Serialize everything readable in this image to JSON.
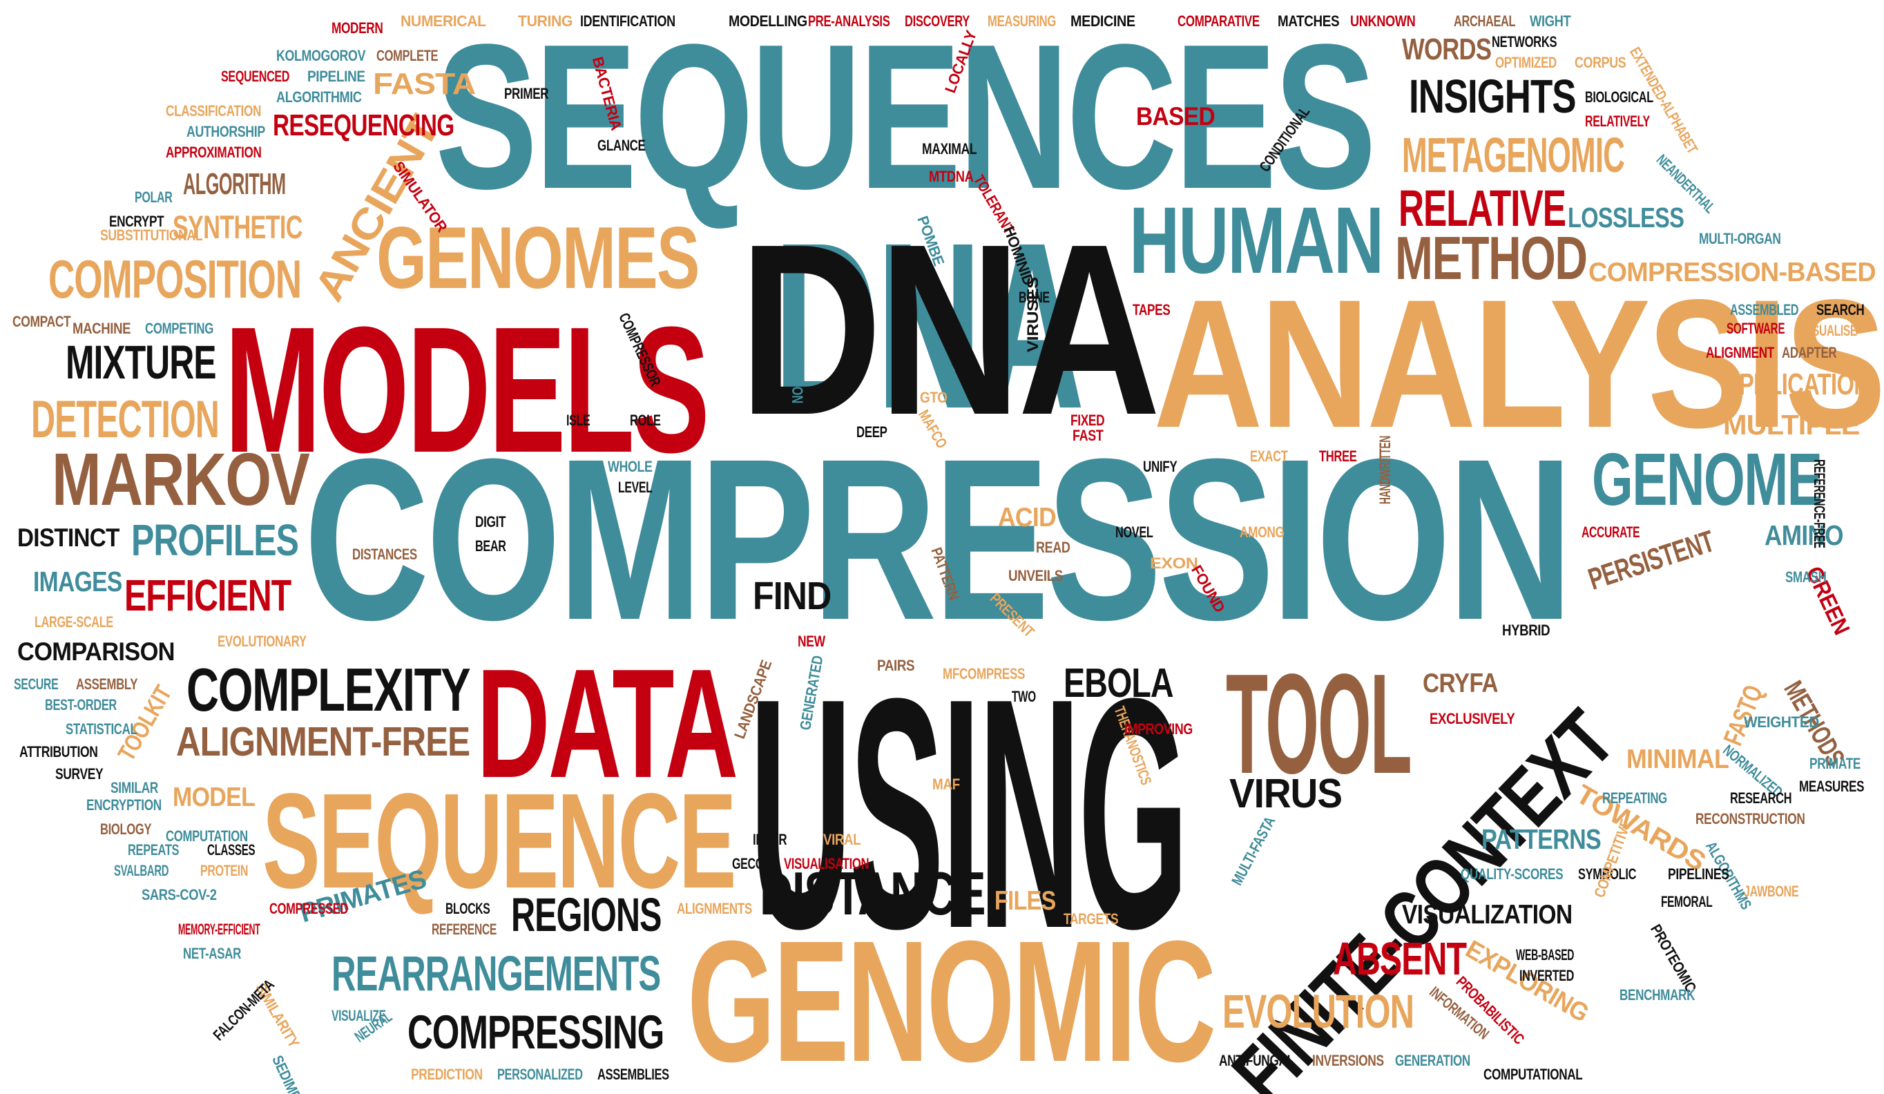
{
  "palette": {
    "teal": "#3f8c9b",
    "red": "#c40010",
    "black": "#111111",
    "orange": "#e8a55c",
    "brown": "#94603f"
  },
  "words": [
    {
      "text": "DNA",
      "color": "teal"
    },
    {
      "text": "DNA",
      "color": "black"
    },
    {
      "text": "COMPRESSION",
      "color": "teal"
    },
    {
      "text": "SEQUENCES",
      "color": "teal"
    },
    {
      "text": "USING",
      "color": "black"
    },
    {
      "text": "MODELS",
      "color": "red"
    },
    {
      "text": "ANALYSIS",
      "color": "orange"
    },
    {
      "text": "GENOMIC",
      "color": "orange"
    },
    {
      "text": "DATA",
      "color": "red"
    },
    {
      "text": "SEQUENCE",
      "color": "orange"
    },
    {
      "text": "FINITE-CONTEXT",
      "color": "black"
    },
    {
      "text": "TOOL",
      "color": "brown"
    },
    {
      "text": "GENOMES",
      "color": "orange"
    },
    {
      "text": "HUMAN",
      "color": "teal"
    },
    {
      "text": "GENOME",
      "color": "teal"
    },
    {
      "text": "MARKOV",
      "color": "brown"
    },
    {
      "text": "DISTANCE",
      "color": "black"
    },
    {
      "text": "COMPLEXITY",
      "color": "black"
    },
    {
      "text": "METHOD",
      "color": "brown"
    },
    {
      "text": "REARRANGEMENTS",
      "color": "teal"
    },
    {
      "text": "COMPRESSING",
      "color": "black"
    },
    {
      "text": "COMPOSITION",
      "color": "orange"
    },
    {
      "text": "DETECTION",
      "color": "orange"
    },
    {
      "text": "MIXTURE",
      "color": "black"
    },
    {
      "text": "RELATIVE",
      "color": "red"
    },
    {
      "text": "INSIGHTS",
      "color": "black"
    },
    {
      "text": "METAGENOMIC",
      "color": "orange"
    },
    {
      "text": "REGIONS",
      "color": "black"
    },
    {
      "text": "EVOLUTION",
      "color": "orange"
    },
    {
      "text": "ALIGNMENT-FREE",
      "color": "brown"
    },
    {
      "text": "PROFILES",
      "color": "teal"
    },
    {
      "text": "EFFICIENT",
      "color": "red"
    },
    {
      "text": "ABSENT",
      "color": "red"
    },
    {
      "text": "EBOLA",
      "color": "black"
    },
    {
      "text": "VIRUS",
      "color": "black"
    },
    {
      "text": "ANCIENT",
      "color": "orange"
    },
    {
      "text": "SYNTHETIC",
      "color": "orange"
    },
    {
      "text": "ALGORITHM",
      "color": "brown"
    },
    {
      "text": "RESEQUENCING",
      "color": "red"
    },
    {
      "text": "FASTA",
      "color": "orange"
    },
    {
      "text": "WORDS",
      "color": "brown"
    },
    {
      "text": "LOSSLESS",
      "color": "teal"
    },
    {
      "text": "COMPRESSION-BASED",
      "color": "orange"
    },
    {
      "text": "APPLICATION",
      "color": "orange"
    },
    {
      "text": "MULTIPLE",
      "color": "orange"
    },
    {
      "text": "PERSISTENT",
      "color": "brown"
    },
    {
      "text": "AMINO",
      "color": "teal"
    },
    {
      "text": "FIND",
      "color": "black"
    },
    {
      "text": "ACID",
      "color": "orange"
    },
    {
      "text": "CRYFA",
      "color": "brown"
    },
    {
      "text": "FASTQ",
      "color": "orange"
    },
    {
      "text": "METHODS",
      "color": "brown"
    },
    {
      "text": "GREEN",
      "color": "red"
    },
    {
      "text": "MINIMAL",
      "color": "orange"
    },
    {
      "text": "TOWARDS",
      "color": "orange"
    },
    {
      "text": "PATTERNS",
      "color": "teal"
    },
    {
      "text": "VISUALIZATION",
      "color": "black"
    },
    {
      "text": "EXPLORING",
      "color": "orange"
    },
    {
      "text": "FILES",
      "color": "orange"
    },
    {
      "text": "PRIMATES",
      "color": "teal"
    },
    {
      "text": "MODEL",
      "color": "orange"
    },
    {
      "text": "IMAGES",
      "color": "teal"
    },
    {
      "text": "DISTINCT",
      "color": "black"
    },
    {
      "text": "COMPARISON",
      "color": "black"
    },
    {
      "text": "TOOLKIT",
      "color": "orange"
    },
    {
      "text": "BASED",
      "color": "red"
    },
    {
      "text": "MODERN",
      "color": "red"
    },
    {
      "text": "NUMERICAL",
      "color": "orange"
    },
    {
      "text": "TURING",
      "color": "orange"
    },
    {
      "text": "IDENTIFICATION",
      "color": "black"
    },
    {
      "text": "MODELLING",
      "color": "black"
    },
    {
      "text": "PRE-ANALYSIS",
      "color": "red"
    },
    {
      "text": "DISCOVERY",
      "color": "red"
    },
    {
      "text": "MEASURING",
      "color": "orange"
    },
    {
      "text": "MEDICINE",
      "color": "black"
    },
    {
      "text": "COMPARATIVE",
      "color": "red"
    },
    {
      "text": "MATCHES",
      "color": "black"
    },
    {
      "text": "UNKNOWN",
      "color": "red"
    },
    {
      "text": "ARCHAEAL",
      "color": "brown"
    },
    {
      "text": "WIGHT",
      "color": "teal"
    },
    {
      "text": "KOLMOGOROV",
      "color": "teal"
    },
    {
      "text": "COMPLETE",
      "color": "brown"
    },
    {
      "text": "SEQUENCED",
      "color": "red"
    },
    {
      "text": "PIPELINE",
      "color": "teal"
    },
    {
      "text": "CLASSIFICATION",
      "color": "orange"
    },
    {
      "text": "ALGORITHMIC",
      "color": "teal"
    },
    {
      "text": "AUTHORSHIP",
      "color": "teal"
    },
    {
      "text": "APPROXIMATION",
      "color": "red"
    },
    {
      "text": "POLAR",
      "color": "teal"
    },
    {
      "text": "ENCRYPT",
      "color": "black"
    },
    {
      "text": "SUBSTITUTIONAL",
      "color": "orange"
    },
    {
      "text": "COMPACT",
      "color": "brown"
    },
    {
      "text": "MACHINE",
      "color": "brown"
    },
    {
      "text": "COMPETING",
      "color": "teal"
    },
    {
      "text": "PRIMER",
      "color": "black"
    },
    {
      "text": "BACTERIA",
      "color": "red"
    },
    {
      "text": "GLANCE",
      "color": "black"
    },
    {
      "text": "SIMULATOR",
      "color": "red"
    },
    {
      "text": "LOCALLY",
      "color": "red"
    },
    {
      "text": "MAXIMAL",
      "color": "black"
    },
    {
      "text": "MTDNA",
      "color": "red"
    },
    {
      "text": "TOLERANT",
      "color": "red"
    },
    {
      "text": "POMBE",
      "color": "teal"
    },
    {
      "text": "HOMINID",
      "color": "black"
    },
    {
      "text": "BONE",
      "color": "black"
    },
    {
      "text": "COMPRESSOR",
      "color": "black"
    },
    {
      "text": "CONVERSION",
      "color": "teal"
    },
    {
      "text": "VIRUSES",
      "color": "black"
    },
    {
      "text": "TAPES",
      "color": "red"
    },
    {
      "text": "GTO",
      "color": "orange"
    },
    {
      "text": "MAFCO",
      "color": "orange"
    },
    {
      "text": "ISLE",
      "color": "black"
    },
    {
      "text": "ROLE",
      "color": "black"
    },
    {
      "text": "DEEP",
      "color": "black"
    },
    {
      "text": "FIXED",
      "color": "red"
    },
    {
      "text": "FAST",
      "color": "red"
    },
    {
      "text": "UNIFY",
      "color": "black"
    },
    {
      "text": "EXACT",
      "color": "orange"
    },
    {
      "text": "THREE",
      "color": "red"
    },
    {
      "text": "WHOLE",
      "color": "teal"
    },
    {
      "text": "LEVEL",
      "color": "black"
    },
    {
      "text": "DIGIT",
      "color": "black"
    },
    {
      "text": "BEAR",
      "color": "black"
    },
    {
      "text": "DISTANCES",
      "color": "brown"
    },
    {
      "text": "NOVEL",
      "color": "black"
    },
    {
      "text": "AMONG",
      "color": "orange"
    },
    {
      "text": "READ",
      "color": "brown"
    },
    {
      "text": "UNVEILS",
      "color": "brown"
    },
    {
      "text": "PRESENT",
      "color": "orange"
    },
    {
      "text": "PATTERN",
      "color": "brown"
    },
    {
      "text": "EXON",
      "color": "orange"
    },
    {
      "text": "FOUND",
      "color": "red"
    },
    {
      "text": "HANDWRITTEN",
      "color": "brown"
    },
    {
      "text": "ACCURATE",
      "color": "red"
    },
    {
      "text": "REFERENCE-FREE",
      "color": "black"
    },
    {
      "text": "SMASH",
      "color": "teal"
    },
    {
      "text": "LARGE-SCALE",
      "color": "orange"
    },
    {
      "text": "EVOLUTIONARY",
      "color": "orange"
    },
    {
      "text": "NEW",
      "color": "red"
    },
    {
      "text": "GENERATED",
      "color": "teal"
    },
    {
      "text": "PAIRS",
      "color": "brown"
    },
    {
      "text": "MFCOMPRESS",
      "color": "orange"
    },
    {
      "text": "TWO",
      "color": "black"
    },
    {
      "text": "LANDSCAPE",
      "color": "brown"
    },
    {
      "text": "THERANOSTICS",
      "color": "orange"
    },
    {
      "text": "HYBRID",
      "color": "black"
    },
    {
      "text": "EXCLUSIVELY",
      "color": "red"
    },
    {
      "text": "IMPROVING",
      "color": "red"
    },
    {
      "text": "WEIGHTED",
      "color": "teal"
    },
    {
      "text": "NORMALIZED",
      "color": "teal"
    },
    {
      "text": "PRIMATE",
      "color": "teal"
    },
    {
      "text": "MEASURES",
      "color": "black"
    },
    {
      "text": "REPEATING",
      "color": "teal"
    },
    {
      "text": "RESEARCH",
      "color": "black"
    },
    {
      "text": "RECONSTRUCTION",
      "color": "brown"
    },
    {
      "text": "ALGORITHMS",
      "color": "teal"
    },
    {
      "text": "MULTI-FASTA",
      "color": "teal"
    },
    {
      "text": "QUALITY-SCORES",
      "color": "teal"
    },
    {
      "text": "SYMBOLIC",
      "color": "black"
    },
    {
      "text": "PIPELINES",
      "color": "black"
    },
    {
      "text": "COMPETITIVE",
      "color": "orange"
    },
    {
      "text": "FEMORAL",
      "color": "black"
    },
    {
      "text": "JAWBONE",
      "color": "orange"
    },
    {
      "text": "PROTEOMIC",
      "color": "black"
    },
    {
      "text": "WEB-BASED",
      "color": "black"
    },
    {
      "text": "INVERTED",
      "color": "black"
    },
    {
      "text": "BENCHMARK",
      "color": "teal"
    },
    {
      "text": "INFORMATION",
      "color": "brown"
    },
    {
      "text": "PROBABILISTIC",
      "color": "red"
    },
    {
      "text": "ANTIFUNGAL",
      "color": "black"
    },
    {
      "text": "INVERSIONS",
      "color": "brown"
    },
    {
      "text": "GENERATION",
      "color": "teal"
    },
    {
      "text": "COMPUTATIONAL",
      "color": "black"
    },
    {
      "text": "TARGETS",
      "color": "orange"
    },
    {
      "text": "ALIGNMENTS",
      "color": "orange"
    },
    {
      "text": "INFER",
      "color": "black"
    },
    {
      "text": "VIRAL",
      "color": "orange"
    },
    {
      "text": "GECO2",
      "color": "black"
    },
    {
      "text": "VISUALISATION",
      "color": "red"
    },
    {
      "text": "MAF",
      "color": "orange"
    },
    {
      "text": "BLOCKS",
      "color": "black"
    },
    {
      "text": "REFERENCE",
      "color": "brown"
    },
    {
      "text": "SECURE",
      "color": "teal"
    },
    {
      "text": "ASSEMBLY",
      "color": "brown"
    },
    {
      "text": "BEST-ORDER",
      "color": "teal"
    },
    {
      "text": "STATISTICAL",
      "color": "teal"
    },
    {
      "text": "ATTRIBUTION",
      "color": "black"
    },
    {
      "text": "SURVEY",
      "color": "black"
    },
    {
      "text": "SIMILAR",
      "color": "teal"
    },
    {
      "text": "ENCRYPTION",
      "color": "teal"
    },
    {
      "text": "BIOLOGY",
      "color": "brown"
    },
    {
      "text": "COMPUTATION",
      "color": "teal"
    },
    {
      "text": "REPEATS",
      "color": "teal"
    },
    {
      "text": "CLASSES",
      "color": "black"
    },
    {
      "text": "SVALBARD",
      "color": "teal"
    },
    {
      "text": "PROTEIN",
      "color": "orange"
    },
    {
      "text": "SARS-COV-2",
      "color": "teal"
    },
    {
      "text": "COMPRESSED",
      "color": "red"
    },
    {
      "text": "MEMORY-EFFICIENT",
      "color": "red"
    },
    {
      "text": "NET-ASAR",
      "color": "teal"
    },
    {
      "text": "SIMILARITY",
      "color": "orange"
    },
    {
      "text": "FALCON-META",
      "color": "black"
    },
    {
      "text": "SEDIMENTARY",
      "color": "teal"
    },
    {
      "text": "VISUALIZE",
      "color": "teal"
    },
    {
      "text": "NEURAL",
      "color": "teal"
    },
    {
      "text": "PREDICTION",
      "color": "orange"
    },
    {
      "text": "PERSONALIZED",
      "color": "teal"
    },
    {
      "text": "ASSEMBLIES",
      "color": "black"
    },
    {
      "text": "NETWORKS",
      "color": "black"
    },
    {
      "text": "OPTIMIZED",
      "color": "orange"
    },
    {
      "text": "CORPUS",
      "color": "orange"
    },
    {
      "text": "EXTENDED-ALPHABET",
      "color": "orange"
    },
    {
      "text": "BIOLOGICAL",
      "color": "black"
    },
    {
      "text": "RELATIVELY",
      "color": "red"
    },
    {
      "text": "CONDITIONAL",
      "color": "black"
    },
    {
      "text": "NEANDERTHAL",
      "color": "teal"
    },
    {
      "text": "MULTI-ORGAN",
      "color": "teal"
    },
    {
      "text": "ASSEMBLED",
      "color": "teal"
    },
    {
      "text": "SEARCH",
      "color": "black"
    },
    {
      "text": "SOFTWARE",
      "color": "red"
    },
    {
      "text": "VISUALISE",
      "color": "orange"
    },
    {
      "text": "ALIGNMENT",
      "color": "red"
    },
    {
      "text": "ADAPTER",
      "color": "brown"
    }
  ]
}
